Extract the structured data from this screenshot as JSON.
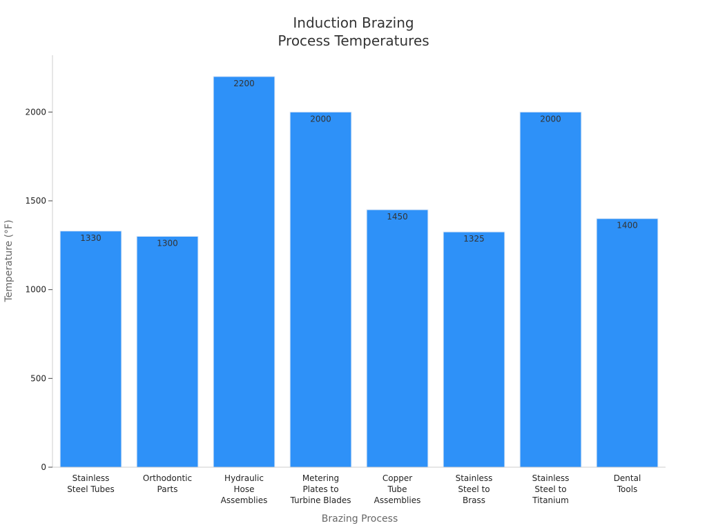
{
  "chart_data": {
    "type": "bar",
    "title_lines": [
      "Induction Brazing",
      "Process Temperatures"
    ],
    "xlabel": "Brazing Process",
    "ylabel": "Temperature (°F)",
    "ylim": [
      0,
      2320
    ],
    "yticks": [
      0,
      500,
      1000,
      1500,
      2000
    ],
    "categories": [
      [
        "Stainless",
        "Steel Tubes"
      ],
      [
        "Orthodontic",
        "Parts"
      ],
      [
        "Hydraulic",
        "Hose",
        "Assemblies"
      ],
      [
        "Metering",
        "Plates to",
        "Turbine Blades"
      ],
      [
        "Copper",
        "Tube",
        "Assemblies"
      ],
      [
        "Stainless",
        "Steel to",
        "Brass"
      ],
      [
        "Stainless",
        "Steel to",
        "Titanium"
      ],
      [
        "Dental",
        "Tools"
      ]
    ],
    "values": [
      1330,
      1300,
      2200,
      2000,
      1450,
      1325,
      2000,
      1400
    ],
    "data_labels": [
      "1330",
      "1300",
      "2200",
      "2000",
      "1450",
      "1325",
      "2000",
      "1400"
    ],
    "bar_color": "#2e91f8",
    "grid": false,
    "legend": "none"
  }
}
